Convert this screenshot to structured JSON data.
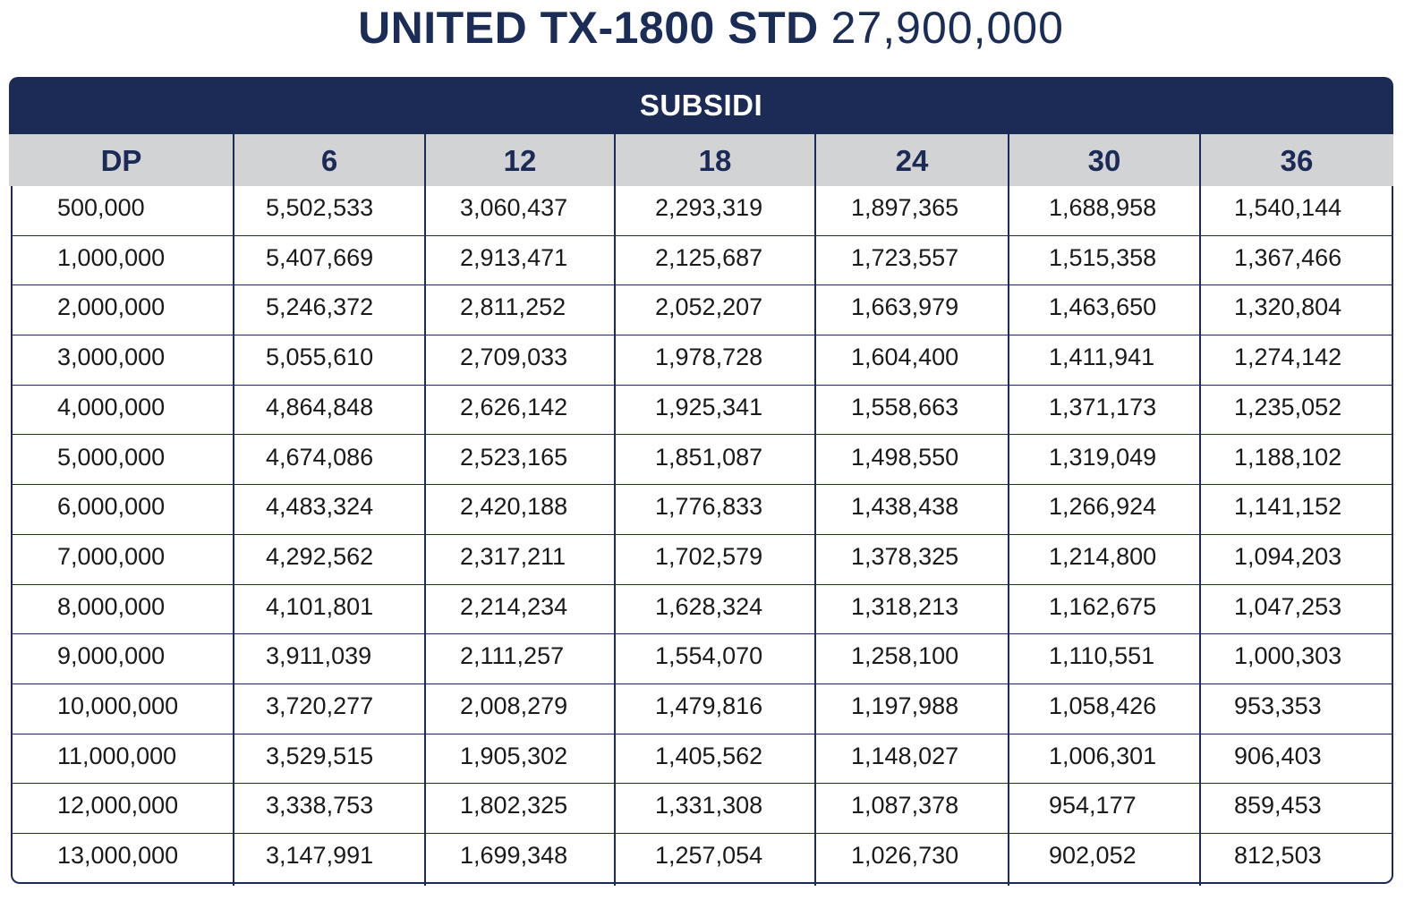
{
  "title": {
    "model": "UNITED TX-1800 STD",
    "price": "27,900,000"
  },
  "table": {
    "band_label": "SUBSIDI",
    "columns": [
      "DP",
      "6",
      "12",
      "18",
      "24",
      "30",
      "36"
    ],
    "rows": [
      [
        "500,000",
        "5,502,533",
        "3,060,437",
        "2,293,319",
        "1,897,365",
        "1,688,958",
        "1,540,144"
      ],
      [
        "1,000,000",
        "5,407,669",
        "2,913,471",
        "2,125,687",
        "1,723,557",
        "1,515,358",
        "1,367,466"
      ],
      [
        "2,000,000",
        "5,246,372",
        "2,811,252",
        "2,052,207",
        "1,663,979",
        "1,463,650",
        "1,320,804"
      ],
      [
        "3,000,000",
        "5,055,610",
        "2,709,033",
        "1,978,728",
        "1,604,400",
        "1,411,941",
        "1,274,142"
      ],
      [
        "4,000,000",
        "4,864,848",
        "2,626,142",
        "1,925,341",
        "1,558,663",
        "1,371,173",
        "1,235,052"
      ],
      [
        "5,000,000",
        "4,674,086",
        "2,523,165",
        "1,851,087",
        "1,498,550",
        "1,319,049",
        "1,188,102"
      ],
      [
        "6,000,000",
        "4,483,324",
        "2,420,188",
        "1,776,833",
        "1,438,438",
        "1,266,924",
        "1,141,152"
      ],
      [
        "7,000,000",
        "4,292,562",
        "2,317,211",
        "1,702,579",
        "1,378,325",
        "1,214,800",
        "1,094,203"
      ],
      [
        "8,000,000",
        "4,101,801",
        "2,214,234",
        "1,628,324",
        "1,318,213",
        "1,162,675",
        "1,047,253"
      ],
      [
        "9,000,000",
        "3,911,039",
        "2,111,257",
        "1,554,070",
        "1,258,100",
        "1,110,551",
        "1,000,303"
      ],
      [
        "10,000,000",
        "3,720,277",
        "2,008,279",
        "1,479,816",
        "1,197,988",
        "1,058,426",
        "953,353"
      ],
      [
        "11,000,000",
        "3,529,515",
        "1,905,302",
        "1,405,562",
        "1,148,027",
        "1,006,301",
        "906,403"
      ],
      [
        "12,000,000",
        "3,338,753",
        "1,802,325",
        "1,331,308",
        "1,087,378",
        "954,177",
        "859,453"
      ],
      [
        "13,000,000",
        "3,147,991",
        "1,699,348",
        "1,257,054",
        "1,026,730",
        "902,052",
        "812,503"
      ]
    ]
  }
}
